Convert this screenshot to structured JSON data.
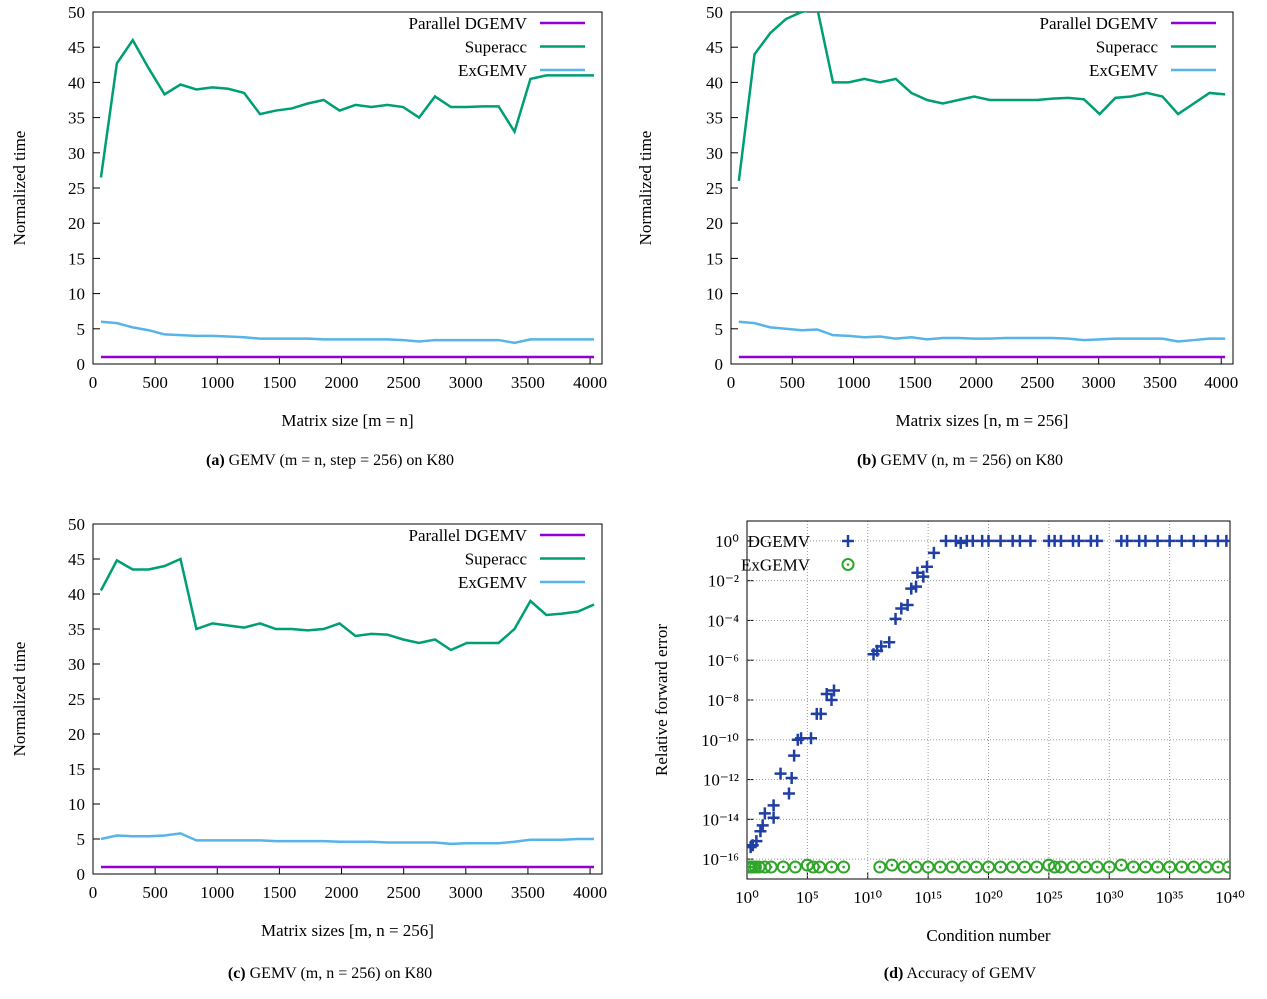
{
  "chart_data": [
    {
      "type": "line",
      "xlabel": "Matrix size [m = n]",
      "ylabel": "Normalized time",
      "caption_label": "(a)",
      "caption": "GEMV (m = n, step = 256) on K80",
      "xlim": [
        0,
        4096
      ],
      "ylim": [
        0,
        50
      ],
      "xticks": [
        0,
        500,
        1000,
        1500,
        2000,
        2500,
        3000,
        3500,
        4000
      ],
      "yticks": [
        0,
        5,
        10,
        15,
        20,
        25,
        30,
        35,
        40,
        45,
        50
      ],
      "legend": "upper right",
      "x": [
        64,
        192,
        320,
        448,
        576,
        704,
        832,
        960,
        1088,
        1216,
        1344,
        1472,
        1600,
        1728,
        1856,
        1984,
        2112,
        2240,
        2368,
        2496,
        2624,
        2752,
        2880,
        3008,
        3136,
        3264,
        3392,
        3520,
        3648,
        3776,
        3904,
        4032
      ],
      "series": [
        {
          "name": "Parallel DGEMV",
          "color": "#9400d3",
          "values": [
            1,
            1,
            1,
            1,
            1,
            1,
            1,
            1,
            1,
            1,
            1,
            1,
            1,
            1,
            1,
            1,
            1,
            1,
            1,
            1,
            1,
            1,
            1,
            1,
            1,
            1,
            1,
            1,
            1,
            1,
            1,
            1
          ]
        },
        {
          "name": "Superacc",
          "color": "#009e73",
          "values": [
            26.5,
            42.7,
            46,
            42,
            38.3,
            39.7,
            39,
            39.3,
            39.1,
            38.5,
            35.5,
            36,
            36.3,
            37,
            37.5,
            36,
            36.8,
            36.5,
            36.8,
            36.5,
            35,
            38,
            36.5,
            36.5,
            36.6,
            36.6,
            33,
            40.5,
            41,
            41,
            41,
            41
          ]
        },
        {
          "name": "ExGEMV",
          "color": "#56b4e9",
          "values": [
            6,
            5.8,
            5.2,
            4.8,
            4.2,
            4.1,
            4,
            4,
            3.9,
            3.8,
            3.6,
            3.6,
            3.6,
            3.6,
            3.5,
            3.5,
            3.5,
            3.5,
            3.5,
            3.4,
            3.2,
            3.4,
            3.4,
            3.4,
            3.4,
            3.4,
            3,
            3.5,
            3.5,
            3.5,
            3.5,
            3.5
          ]
        }
      ]
    },
    {
      "type": "line",
      "xlabel": "Matrix sizes [n, m = 256]",
      "ylabel": "Normalized time",
      "caption_label": "(b)",
      "caption": "GEMV (n, m = 256) on K80",
      "xlim": [
        0,
        4096
      ],
      "ylim": [
        0,
        50
      ],
      "xticks": [
        0,
        500,
        1000,
        1500,
        2000,
        2500,
        3000,
        3500,
        4000
      ],
      "yticks": [
        0,
        5,
        10,
        15,
        20,
        25,
        30,
        35,
        40,
        45,
        50
      ],
      "legend": "upper right",
      "x": [
        64,
        192,
        320,
        448,
        576,
        704,
        832,
        960,
        1088,
        1216,
        1344,
        1472,
        1600,
        1728,
        1856,
        1984,
        2112,
        2240,
        2368,
        2496,
        2624,
        2752,
        2880,
        3008,
        3136,
        3264,
        3392,
        3520,
        3648,
        3776,
        3904,
        4032
      ],
      "series": [
        {
          "name": "Parallel DGEMV",
          "color": "#9400d3",
          "values": [
            1,
            1,
            1,
            1,
            1,
            1,
            1,
            1,
            1,
            1,
            1,
            1,
            1,
            1,
            1,
            1,
            1,
            1,
            1,
            1,
            1,
            1,
            1,
            1,
            1,
            1,
            1,
            1,
            1,
            1,
            1,
            1
          ]
        },
        {
          "name": "Superacc",
          "color": "#009e73",
          "values": [
            26,
            44,
            47,
            49,
            50,
            50.5,
            40,
            40,
            40.5,
            40,
            40.5,
            38.5,
            37.5,
            37,
            37.5,
            38,
            37.5,
            37.5,
            37.5,
            37.5,
            37.7,
            37.8,
            37.6,
            35.5,
            37.8,
            38,
            38.5,
            38,
            35.5,
            37,
            38.5,
            38.3
          ]
        },
        {
          "name": "ExGEMV",
          "color": "#56b4e9",
          "values": [
            6,
            5.8,
            5.2,
            5,
            4.8,
            4.9,
            4.1,
            4,
            3.8,
            3.9,
            3.6,
            3.8,
            3.5,
            3.7,
            3.7,
            3.6,
            3.6,
            3.7,
            3.7,
            3.7,
            3.7,
            3.6,
            3.4,
            3.5,
            3.6,
            3.6,
            3.6,
            3.6,
            3.2,
            3.4,
            3.6,
            3.6
          ]
        }
      ]
    },
    {
      "type": "line",
      "xlabel": "Matrix sizes [m, n = 256]",
      "ylabel": "Normalized time",
      "caption_label": "(c)",
      "caption": "GEMV (m, n = 256) on K80",
      "xlim": [
        0,
        4096
      ],
      "ylim": [
        0,
        50
      ],
      "xticks": [
        0,
        500,
        1000,
        1500,
        2000,
        2500,
        3000,
        3500,
        4000
      ],
      "yticks": [
        0,
        5,
        10,
        15,
        20,
        25,
        30,
        35,
        40,
        45,
        50
      ],
      "legend": "upper right",
      "x": [
        64,
        192,
        320,
        448,
        576,
        704,
        832,
        960,
        1088,
        1216,
        1344,
        1472,
        1600,
        1728,
        1856,
        1984,
        2112,
        2240,
        2368,
        2496,
        2624,
        2752,
        2880,
        3008,
        3136,
        3264,
        3392,
        3520,
        3648,
        3776,
        3904,
        4032
      ],
      "series": [
        {
          "name": "Parallel DGEMV",
          "color": "#9400d3",
          "values": [
            1,
            1,
            1,
            1,
            1,
            1,
            1,
            1,
            1,
            1,
            1,
            1,
            1,
            1,
            1,
            1,
            1,
            1,
            1,
            1,
            1,
            1,
            1,
            1,
            1,
            1,
            1,
            1,
            1,
            1,
            1,
            1
          ]
        },
        {
          "name": "Superacc",
          "color": "#009e73",
          "values": [
            40.5,
            44.8,
            43.5,
            43.5,
            44,
            45,
            35,
            35.8,
            35.5,
            35.2,
            35.8,
            35,
            35,
            34.8,
            35,
            35.8,
            34,
            34.3,
            34.2,
            33.5,
            33,
            33.5,
            32,
            33,
            33,
            33,
            35,
            39,
            37,
            37.2,
            37.5,
            38.5
          ]
        },
        {
          "name": "ExGEMV",
          "color": "#56b4e9",
          "values": [
            5,
            5.5,
            5.4,
            5.4,
            5.5,
            5.8,
            4.8,
            4.8,
            4.8,
            4.8,
            4.8,
            4.7,
            4.7,
            4.7,
            4.7,
            4.6,
            4.6,
            4.6,
            4.5,
            4.5,
            4.5,
            4.5,
            4.3,
            4.4,
            4.4,
            4.4,
            4.6,
            4.9,
            4.9,
            4.9,
            5,
            5
          ]
        }
      ]
    },
    {
      "type": "scatter",
      "xlabel": "Condition number",
      "ylabel": "Relative forward error",
      "caption_label": "(d)",
      "caption": "Accuracy of GEMV",
      "xscale": "log",
      "yscale": "log",
      "grid": true,
      "legend": "upper left",
      "xlim": [
        1,
        1e+40
      ],
      "ylim": [
        1e-17,
        10
      ],
      "xticks": [
        {
          "value": 1,
          "label": "10⁰"
        },
        {
          "value": 100000.0,
          "label": "10⁵"
        },
        {
          "value": 10000000000.0,
          "label": "10¹⁰"
        },
        {
          "value": 1000000000000000.0,
          "label": "10¹⁵"
        },
        {
          "value": 1e+20,
          "label": "10²⁰"
        },
        {
          "value": 1e+25,
          "label": "10²⁵"
        },
        {
          "value": 1e+30,
          "label": "10³⁰"
        },
        {
          "value": 1e+35,
          "label": "10³⁵"
        },
        {
          "value": 1e+40,
          "label": "10⁴⁰"
        }
      ],
      "yticks": [
        {
          "value": 1e-16,
          "label": "10⁻¹⁶"
        },
        {
          "value": 1e-14,
          "label": "10⁻¹⁴"
        },
        {
          "value": 1e-12,
          "label": "10⁻¹²"
        },
        {
          "value": 1e-10,
          "label": "10⁻¹⁰"
        },
        {
          "value": 1e-08,
          "label": "10⁻⁸"
        },
        {
          "value": 1e-06,
          "label": "10⁻⁶"
        },
        {
          "value": 0.0001,
          "label": "10⁻⁴"
        },
        {
          "value": 0.01,
          "label": "10⁻²"
        },
        {
          "value": 1,
          "label": "10⁰"
        }
      ],
      "series": [
        {
          "name": "DGEMV",
          "color": "#1f3fa3",
          "marker": "plus",
          "x": [
            2,
            3,
            6,
            13,
            20,
            30,
            160,
            160,
            600,
            3000.0,
            5000.0,
            8000.0,
            16000.0,
            30000.0,
            200000.0,
            600000.0,
            1300000.0,
            4000000.0,
            10000000.0,
            16000000.0,
            30000000000.0,
            60000000000.0,
            130000000000.0,
            600000000000.0,
            2000000000000.0,
            6000000000000.0,
            20000000000000.0,
            40000000000000.0,
            100000000000000.0,
            130000000000000.0,
            400000000000000.0,
            800000000000000.0,
            3000000000000000.0,
            3e+16,
            2e+17,
            5e+17,
            1.6e+18,
            5e+18,
            3e+19,
            1e+20,
            1e+21,
            1e+22,
            4e+22,
            3e+23,
            1e+25,
            3e+25,
            1e+26,
            1e+27,
            3e+27,
            3e+28,
            1e+29,
            1e+31,
            3e+31,
            3e+32,
            1e+33,
            1e+34,
            1e+35,
            1e+36,
            1e+37,
            1e+38,
            1e+39,
            5e+39
          ],
          "values": [
            4e-16,
            5e-16,
            8e-16,
            2.5e-15,
            5e-15,
            2e-14,
            1.2e-14,
            5e-14,
            2e-12,
            2e-13,
            1.2e-12,
            1.6e-11,
            1e-10,
            1.2e-10,
            1.2e-10,
            2e-09,
            2e-09,
            2e-08,
            1e-08,
            3e-08,
            2e-06,
            3e-06,
            5e-06,
            8e-06,
            0.00012,
            0.0004,
            0.0006,
            0.004,
            0.005,
            0.025,
            0.016,
            0.05,
            0.25,
            1,
            1,
            0.8,
            1,
            1,
            1,
            1,
            1,
            1,
            1,
            1,
            1,
            1,
            1,
            1,
            1,
            1,
            1,
            1,
            1,
            1,
            1,
            1,
            1,
            1,
            1,
            1,
            1,
            1
          ]
        },
        {
          "name": "ExGEMV",
          "color": "#2fa52a",
          "marker": "circle",
          "x": [
            1.3,
            2,
            3,
            5,
            10.0,
            30.0,
            100.0,
            1000.0,
            10000.0,
            100000.0,
            300000.0,
            1000000.0,
            10000000.0,
            100000000.0,
            100000000000.0,
            1000000000000.0,
            10000000000000.0,
            100000000000000.0,
            1000000000000000.0,
            1e+16,
            1e+17,
            1e+18,
            1e+19,
            1e+20,
            1e+21,
            1e+22,
            1e+23,
            1e+24,
            1e+25,
            3e+25,
            1e+26,
            1e+27,
            1e+28,
            1e+29,
            1e+30,
            1e+31,
            1e+32,
            1e+33,
            1e+34,
            1e+35,
            1e+36,
            1e+37,
            1e+38,
            1e+39,
            8e+39
          ],
          "values": [
            4e-17,
            4e-17,
            4e-17,
            4e-17,
            4e-17,
            4e-17,
            4e-17,
            4e-17,
            4e-17,
            5e-17,
            4e-17,
            4e-17,
            4e-17,
            4e-17,
            4e-17,
            5e-17,
            4e-17,
            4e-17,
            4e-17,
            4e-17,
            4e-17,
            4e-17,
            4e-17,
            4e-17,
            4e-17,
            4e-17,
            4e-17,
            4e-17,
            5e-17,
            4e-17,
            4e-17,
            4e-17,
            4e-17,
            4e-17,
            4e-17,
            5e-17,
            4e-17,
            4e-17,
            4e-17,
            4e-17,
            4e-17,
            4e-17,
            4e-17,
            4e-17,
            4e-17
          ]
        }
      ]
    }
  ]
}
